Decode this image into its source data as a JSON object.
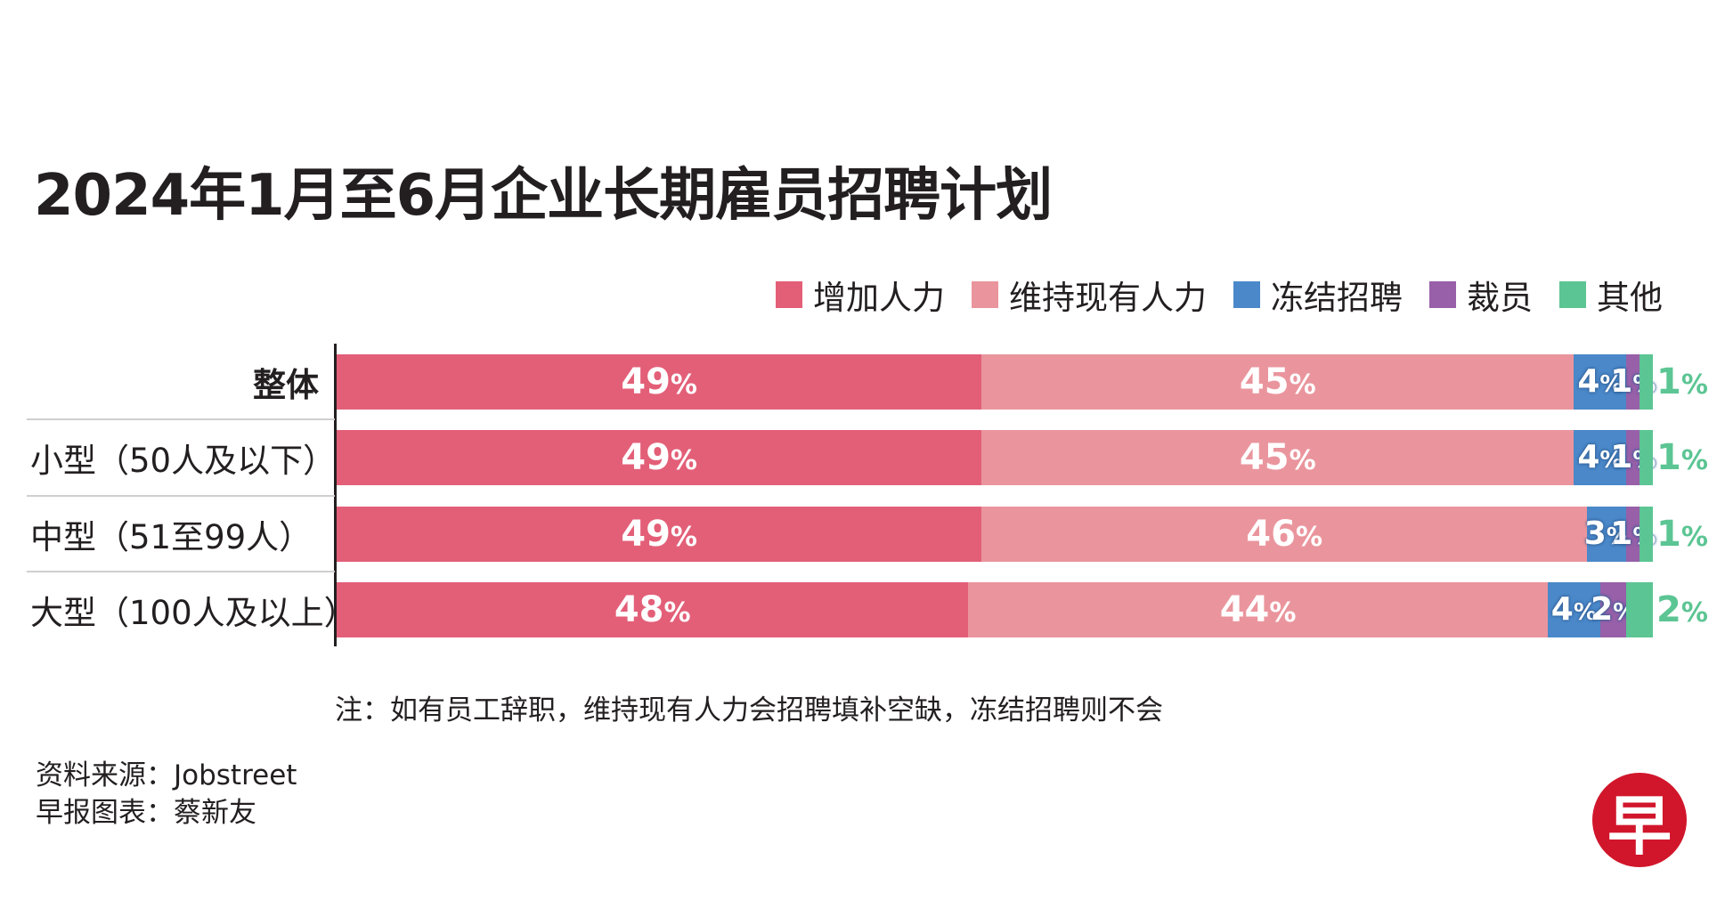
{
  "title": "2024年1月至6月企业长期雇员招聘计划",
  "colors": {
    "increase": "#e35f78",
    "maintain": "#ea959d",
    "freeze": "#4a88c9",
    "layoff": "#9760a8",
    "other": "#5cc594"
  },
  "chart_data": {
    "type": "bar",
    "orientation": "horizontal",
    "stacked": true,
    "categories": [
      "整体",
      "小型（50人及以下）",
      "中型（51至99人）",
      "大型（100人及以上）"
    ],
    "series": [
      {
        "name": "增加人力",
        "values": [
          49,
          49,
          49,
          48
        ]
      },
      {
        "name": "维持现有人力",
        "values": [
          45,
          45,
          46,
          44
        ]
      },
      {
        "name": "冻结招聘",
        "values": [
          4,
          4,
          3,
          4
        ]
      },
      {
        "name": "裁员",
        "values": [
          1,
          1,
          1,
          2
        ]
      },
      {
        "name": "其他",
        "values": [
          1,
          1,
          1,
          2
        ]
      }
    ],
    "unit": "%",
    "legend_position": "top-right"
  },
  "note": "注：如有员工辞职，维持现有人力会招聘填补空缺，冻结招聘则不会",
  "source": {
    "line1": "资料来源：Jobstreet",
    "line2": "早报图表：蔡新友"
  },
  "logo": {
    "text": "早"
  }
}
